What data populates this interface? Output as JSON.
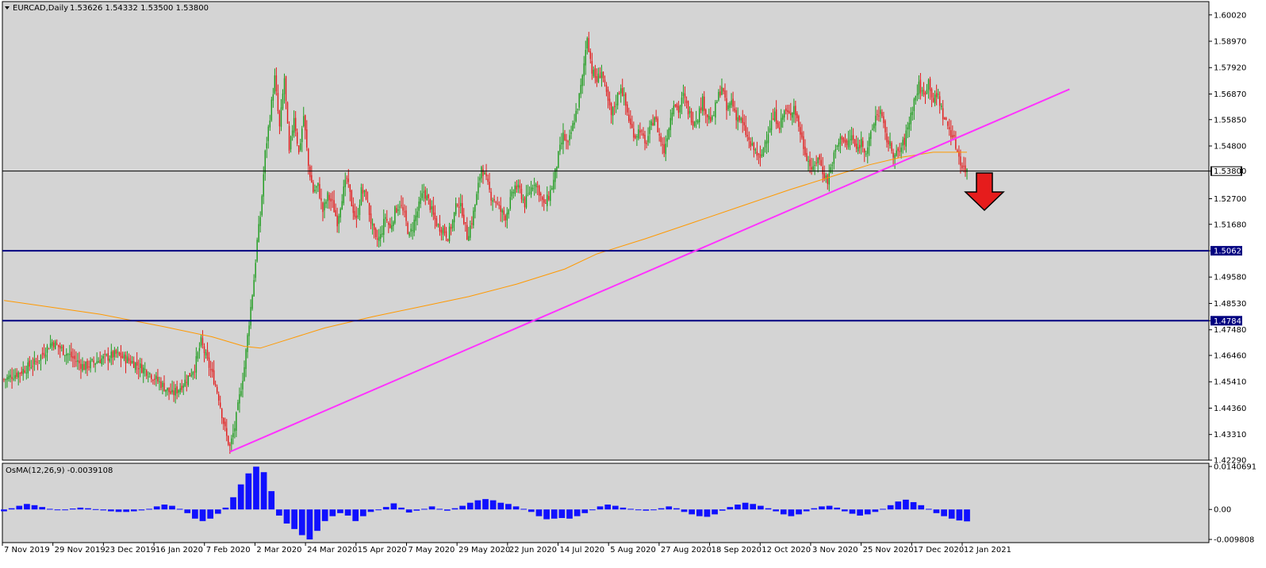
{
  "chart_data": {
    "type": "candlestick",
    "symbol_header": "EURCAD,Daily",
    "ohlc_header": "1.53626 1.54332 1.53500 1.53800",
    "price_axis": {
      "range": [
        1.4229,
        1.6055
      ],
      "ticks": [
        "1.60020",
        "1.58970",
        "1.57920",
        "1.56870",
        "1.55850",
        "1.54800",
        "1.53800",
        "1.52700",
        "1.51680",
        "1.50627",
        "1.49580",
        "1.48530",
        "1.47841",
        "1.47480",
        "1.46460",
        "1.45410",
        "1.44360",
        "1.43310",
        "1.42290"
      ]
    },
    "x_labels": [
      "7 Nov 2019",
      "29 Nov 2019",
      "23 Dec 2019",
      "16 Jan 2020",
      "7 Feb 2020",
      "2 Mar 2020",
      "24 Mar 2020",
      "15 Apr 2020",
      "7 May 2020",
      "29 May 2020",
      "22 Jun 2020",
      "14 Jul 2020",
      "5 Aug 2020",
      "27 Aug 2020",
      "18 Sep 2020",
      "12 Oct 2020",
      "3 Nov 2020",
      "25 Nov 2020",
      "17 Dec 2020",
      "12 Jan 2021"
    ],
    "horizontal_levels": [
      {
        "value": 1.538,
        "label": "1.53800",
        "color": "#000000"
      },
      {
        "value": 1.50627,
        "label": "1.50627",
        "color": "#000080"
      },
      {
        "value": 1.47841,
        "label": "1.47841",
        "color": "#000080"
      }
    ],
    "close_path": [
      [
        0,
        1.455
      ],
      [
        10,
        1.458
      ],
      [
        20,
        1.462
      ],
      [
        30,
        1.47
      ],
      [
        40,
        1.465
      ],
      [
        50,
        1.46
      ],
      [
        60,
        1.463
      ],
      [
        70,
        1.465
      ],
      [
        80,
        1.462
      ],
      [
        90,
        1.458
      ],
      [
        100,
        1.452
      ],
      [
        105,
        1.449
      ],
      [
        110,
        1.452
      ],
      [
        115,
        1.456
      ],
      [
        119,
        1.46
      ],
      [
        123,
        1.47
      ],
      [
        127,
        1.462
      ],
      [
        131,
        1.455
      ],
      [
        134,
        1.448
      ],
      [
        137,
        1.438
      ],
      [
        139,
        1.432
      ],
      [
        141,
        1.428
      ],
      [
        144,
        1.436
      ],
      [
        147,
        1.448
      ],
      [
        150,
        1.46
      ],
      [
        153,
        1.478
      ],
      [
        156,
        1.495
      ],
      [
        158,
        1.51
      ],
      [
        160,
        1.52
      ],
      [
        163,
        1.545
      ],
      [
        166,
        1.56
      ],
      [
        169,
        1.575
      ],
      [
        172,
        1.555
      ],
      [
        175,
        1.575
      ],
      [
        178,
        1.545
      ],
      [
        181,
        1.56
      ],
      [
        184,
        1.545
      ],
      [
        187,
        1.56
      ],
      [
        190,
        1.54
      ],
      [
        193,
        1.53
      ],
      [
        196,
        1.532
      ],
      [
        199,
        1.522
      ],
      [
        202,
        1.528
      ],
      [
        205,
        1.525
      ],
      [
        208,
        1.518
      ],
      [
        211,
        1.528
      ],
      [
        214,
        1.535
      ],
      [
        217,
        1.525
      ],
      [
        220,
        1.518
      ],
      [
        223,
        1.53
      ],
      [
        226,
        1.528
      ],
      [
        229,
        1.518
      ],
      [
        232,
        1.51
      ],
      [
        235,
        1.512
      ],
      [
        238,
        1.52
      ],
      [
        241,
        1.515
      ],
      [
        244,
        1.522
      ],
      [
        247,
        1.525
      ],
      [
        250,
        1.52
      ],
      [
        253,
        1.512
      ],
      [
        256,
        1.518
      ],
      [
        259,
        1.524
      ],
      [
        262,
        1.53
      ],
      [
        265,
        1.526
      ],
      [
        268,
        1.52
      ],
      [
        271,
        1.516
      ],
      [
        274,
        1.515
      ],
      [
        277,
        1.512
      ],
      [
        280,
        1.518
      ],
      [
        283,
        1.526
      ],
      [
        286,
        1.522
      ],
      [
        289,
        1.512
      ],
      [
        292,
        1.518
      ],
      [
        295,
        1.528
      ],
      [
        298,
        1.54
      ],
      [
        301,
        1.534
      ],
      [
        304,
        1.528
      ],
      [
        307,
        1.526
      ],
      [
        310,
        1.522
      ],
      [
        313,
        1.52
      ],
      [
        316,
        1.526
      ],
      [
        319,
        1.532
      ],
      [
        322,
        1.53
      ],
      [
        325,
        1.525
      ],
      [
        328,
        1.53
      ],
      [
        331,
        1.534
      ],
      [
        334,
        1.53
      ],
      [
        337,
        1.524
      ],
      [
        340,
        1.528
      ],
      [
        343,
        1.534
      ],
      [
        346,
        1.544
      ],
      [
        349,
        1.552
      ],
      [
        352,
        1.548
      ],
      [
        355,
        1.556
      ],
      [
        358,
        1.564
      ],
      [
        361,
        1.575
      ],
      [
        364,
        1.592
      ],
      [
        367,
        1.578
      ],
      [
        370,
        1.574
      ],
      [
        373,
        1.578
      ],
      [
        376,
        1.568
      ],
      [
        379,
        1.56
      ],
      [
        382,
        1.566
      ],
      [
        385,
        1.572
      ],
      [
        388,
        1.564
      ],
      [
        391,
        1.556
      ],
      [
        394,
        1.552
      ],
      [
        397,
        1.555
      ],
      [
        400,
        1.548
      ],
      [
        403,
        1.554
      ],
      [
        406,
        1.56
      ],
      [
        409,
        1.552
      ],
      [
        412,
        1.546
      ],
      [
        415,
        1.556
      ],
      [
        418,
        1.566
      ],
      [
        421,
        1.562
      ],
      [
        424,
        1.568
      ],
      [
        427,
        1.562
      ],
      [
        430,
        1.558
      ],
      [
        433,
        1.56
      ],
      [
        436,
        1.566
      ],
      [
        439,
        1.56
      ],
      [
        442,
        1.558
      ],
      [
        445,
        1.566
      ],
      [
        448,
        1.572
      ],
      [
        451,
        1.562
      ],
      [
        454,
        1.566
      ],
      [
        457,
        1.56
      ],
      [
        460,
        1.558
      ],
      [
        463,
        1.553
      ],
      [
        466,
        1.548
      ],
      [
        469,
        1.546
      ],
      [
        472,
        1.542
      ],
      [
        475,
        1.55
      ],
      [
        478,
        1.556
      ],
      [
        481,
        1.56
      ],
      [
        484,
        1.556
      ],
      [
        487,
        1.562
      ],
      [
        490,
        1.56
      ],
      [
        493,
        1.564
      ],
      [
        496,
        1.556
      ],
      [
        499,
        1.548
      ],
      [
        502,
        1.542
      ],
      [
        505,
        1.538
      ],
      [
        508,
        1.544
      ],
      [
        511,
        1.538
      ],
      [
        514,
        1.534
      ],
      [
        517,
        1.542
      ],
      [
        520,
        1.548
      ],
      [
        523,
        1.552
      ],
      [
        526,
        1.548
      ],
      [
        529,
        1.552
      ],
      [
        532,
        1.546
      ],
      [
        535,
        1.55
      ],
      [
        538,
        1.546
      ],
      [
        541,
        1.552
      ],
      [
        544,
        1.56
      ],
      [
        547,
        1.562
      ],
      [
        550,
        1.552
      ],
      [
        553,
        1.548
      ],
      [
        556,
        1.544
      ],
      [
        559,
        1.546
      ],
      [
        562,
        1.55
      ],
      [
        565,
        1.558
      ],
      [
        568,
        1.566
      ],
      [
        571,
        1.572
      ],
      [
        574,
        1.568
      ],
      [
        577,
        1.574
      ],
      [
        580,
        1.566
      ],
      [
        583,
        1.568
      ],
      [
        586,
        1.56
      ],
      [
        589,
        1.556
      ],
      [
        592,
        1.552
      ],
      [
        595,
        1.546
      ],
      [
        598,
        1.54
      ],
      [
        601,
        1.538
      ]
    ],
    "ma_line": [
      [
        0,
        1.4865
      ],
      [
        60,
        1.481
      ],
      [
        100,
        1.476
      ],
      [
        130,
        1.472
      ],
      [
        150,
        1.4682
      ],
      [
        160,
        1.4675
      ],
      [
        175,
        1.4705
      ],
      [
        200,
        1.4755
      ],
      [
        230,
        1.48
      ],
      [
        260,
        1.484
      ],
      [
        290,
        1.488
      ],
      [
        320,
        1.493
      ],
      [
        350,
        1.499
      ],
      [
        370,
        1.505
      ],
      [
        400,
        1.511
      ],
      [
        430,
        1.5175
      ],
      [
        460,
        1.524
      ],
      [
        490,
        1.5305
      ],
      [
        520,
        1.5365
      ],
      [
        540,
        1.5405
      ],
      [
        560,
        1.5435
      ],
      [
        580,
        1.5455
      ],
      [
        601,
        1.5455
      ]
    ],
    "trendline": {
      "from": [
        141,
        1.4262
      ],
      "to": [
        665,
        1.5706
      ],
      "color": "#ff33ff"
    },
    "arrow": {
      "direction": "down",
      "color": "#e61c1c"
    },
    "osma": {
      "label": "OsMA(12,26,9) -0.0039108",
      "range": [
        -0.009808,
        0.014069
      ],
      "ticks": [
        "0.0140691",
        "0.00",
        "-0.009808"
      ],
      "values": [
        -0.0006,
        0.0004,
        0.0012,
        0.0018,
        0.0014,
        0.0008,
        0.0002,
        0.0,
        -0.0002,
        0.0003,
        0.0006,
        0.0004,
        0.0001,
        -0.0003,
        -0.0006,
        -0.0008,
        -0.0008,
        -0.0006,
        -0.0003,
        0.0002,
        0.001,
        0.0016,
        0.0012,
        0.0002,
        -0.0012,
        -0.003,
        -0.0038,
        -0.003,
        -0.0014,
        0.0006,
        0.004,
        0.0082,
        0.0118,
        0.014,
        0.0122,
        0.006,
        -0.002,
        -0.0046,
        -0.0064,
        -0.0084,
        -0.0098,
        -0.007,
        -0.0038,
        -0.0022,
        -0.0012,
        -0.002,
        -0.0038,
        -0.0022,
        -0.0008,
        -0.0002,
        0.0008,
        0.002,
        0.0006,
        -0.001,
        -0.0004,
        0.0002,
        0.001,
        0.0002,
        -0.0004,
        0.0004,
        0.0012,
        0.0022,
        0.003,
        0.0034,
        0.003,
        0.0022,
        0.0018,
        0.001,
        0.0002,
        -0.0008,
        -0.0022,
        -0.0032,
        -0.003,
        -0.0028,
        -0.003,
        -0.0022,
        -0.0012,
        -0.0002,
        0.001,
        0.0016,
        0.0012,
        0.0006,
        0.0002,
        -0.0002,
        -0.0004,
        -0.0002,
        0.0004,
        0.001,
        0.0004,
        -0.0008,
        -0.0016,
        -0.0022,
        -0.0024,
        -0.0016,
        -0.0004,
        0.0008,
        0.0016,
        0.0022,
        0.0018,
        0.0012,
        0.0004,
        -0.0006,
        -0.0016,
        -0.0022,
        -0.0016,
        -0.0006,
        0.0004,
        0.001,
        0.0012,
        0.0006,
        -0.0006,
        -0.0014,
        -0.002,
        -0.0016,
        -0.0008,
        0.0002,
        0.0014,
        0.0026,
        0.0032,
        0.0024,
        0.0014,
        0.0002,
        -0.0012,
        -0.0022,
        -0.003,
        -0.0036,
        -0.0039
      ]
    }
  }
}
